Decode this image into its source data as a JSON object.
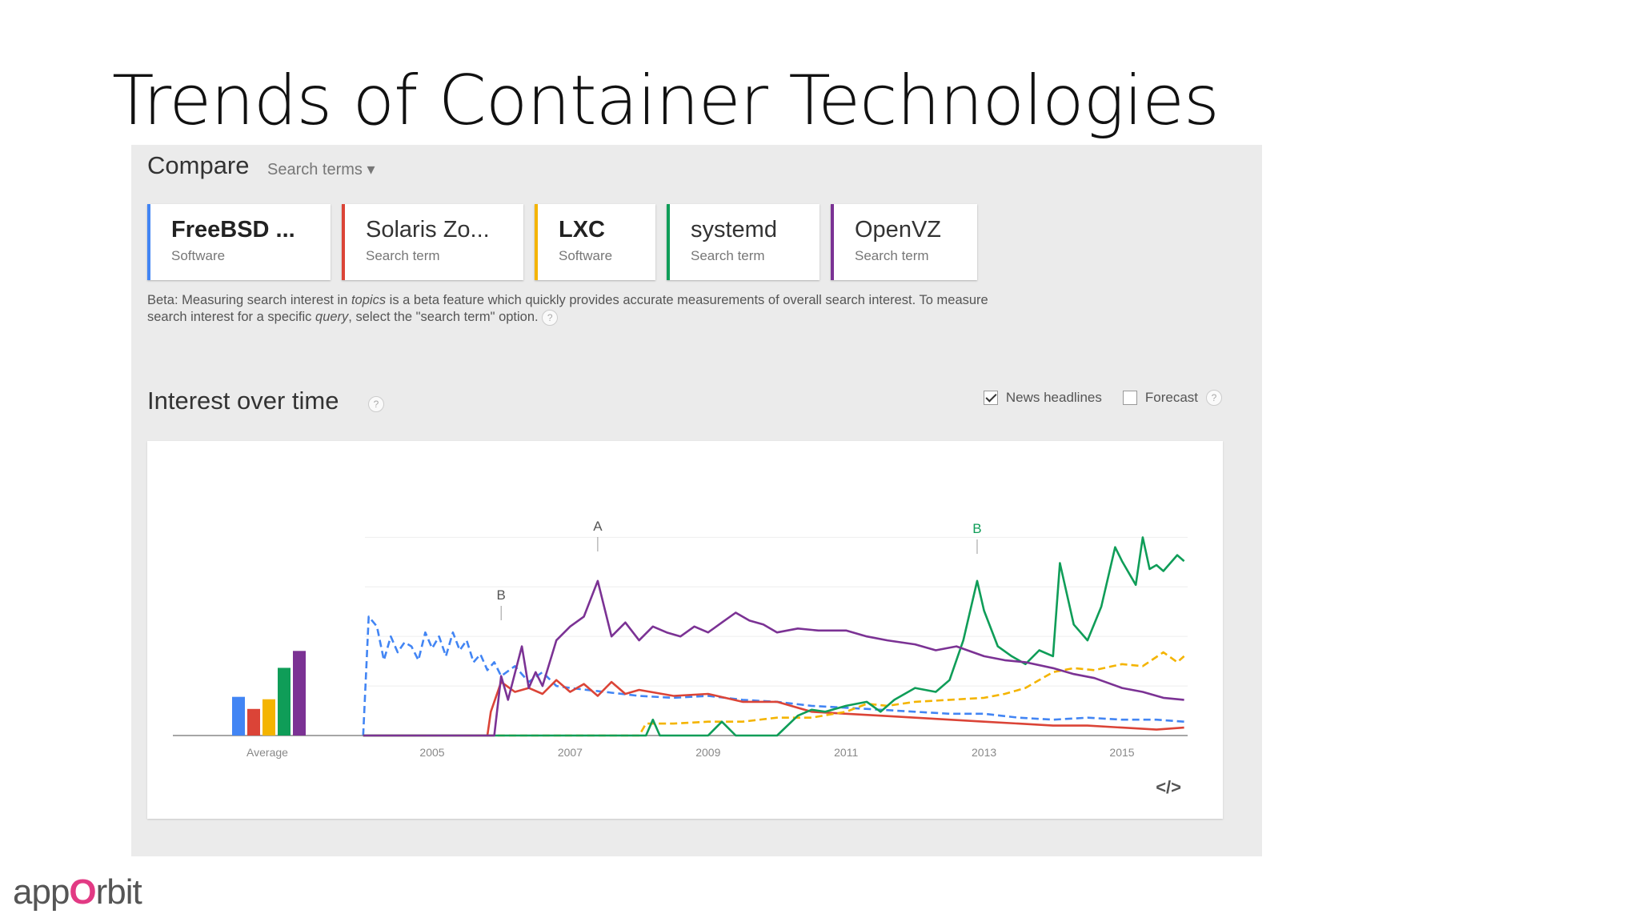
{
  "slide": {
    "title": "Trends of Container Technologies",
    "logo_pre": "app",
    "logo_o": "O",
    "logo_post": "rbit"
  },
  "compare": {
    "label": "Compare",
    "dropdown": "Search terms ▾",
    "terms": [
      {
        "name": "FreeBSD ...",
        "type": "Software",
        "color": "#4285f4",
        "bold": true
      },
      {
        "name": "Solaris Zo...",
        "type": "Search term",
        "color": "#db4437",
        "bold": false
      },
      {
        "name": "LXC",
        "type": "Software",
        "color": "#f4b400",
        "bold": true
      },
      {
        "name": "systemd",
        "type": "Search term",
        "color": "#0f9d58",
        "bold": false
      },
      {
        "name": "OpenVZ",
        "type": "Search term",
        "color": "#7b3294",
        "bold": false
      }
    ],
    "beta_a": "Beta: Measuring search interest in ",
    "beta_topics": "topics",
    "beta_b": " is a beta feature which quickly provides accurate measurements of overall search interest. To measure search interest for a specific ",
    "beta_query": "query",
    "beta_c": ", select the \"search term\" option.",
    "help": "?"
  },
  "interest": {
    "title": "Interest over time",
    "news_label": "News headlines",
    "news_checked": true,
    "forecast_label": "Forecast",
    "forecast_checked": false,
    "embed": "</>"
  },
  "chart_data": {
    "type": "line",
    "title": "Interest over time",
    "xlim": [
      2003.0,
      2016.0
    ],
    "ylim": [
      0,
      100
    ],
    "x_ticks": [
      "2005",
      "2007",
      "2009",
      "2011",
      "2013",
      "2015"
    ],
    "x_tick_values": [
      2005,
      2007,
      2009,
      2011,
      2013,
      2015
    ],
    "average_label": "Average",
    "averages": [
      {
        "name": "FreeBSD jails",
        "value": 16,
        "color": "#4285f4"
      },
      {
        "name": "Solaris Zones",
        "value": 11,
        "color": "#db4437"
      },
      {
        "name": "LXC",
        "value": 15,
        "color": "#f4b400"
      },
      {
        "name": "systemd",
        "value": 28,
        "color": "#0f9d58"
      },
      {
        "name": "OpenVZ",
        "value": 35,
        "color": "#7b3294"
      }
    ],
    "series": [
      {
        "name": "FreeBSD jails",
        "color": "#4285f4",
        "dashed": true,
        "x": [
          2004.0,
          2004.08,
          2004.2,
          2004.3,
          2004.4,
          2004.5,
          2004.6,
          2004.7,
          2004.8,
          2004.9,
          2005.0,
          2005.1,
          2005.2,
          2005.3,
          2005.4,
          2005.5,
          2005.6,
          2005.7,
          2005.8,
          2005.9,
          2006.0,
          2006.2,
          2006.4,
          2006.6,
          2006.8,
          2007.0,
          2007.5,
          2008.0,
          2008.5,
          2009.0,
          2009.5,
          2010.0,
          2010.5,
          2011.0,
          2011.5,
          2012.0,
          2012.5,
          2013.0,
          2013.5,
          2014.0,
          2014.5,
          2015.0,
          2015.5,
          2015.9
        ],
        "y": [
          0,
          60,
          55,
          38,
          50,
          42,
          47,
          45,
          38,
          52,
          44,
          50,
          40,
          52,
          43,
          48,
          37,
          41,
          33,
          37,
          30,
          35,
          27,
          32,
          25,
          24,
          22,
          20,
          19,
          20,
          18,
          17,
          15,
          14,
          13,
          12,
          11,
          11,
          9,
          8,
          9,
          8,
          8,
          7
        ]
      },
      {
        "name": "Solaris Zones",
        "color": "#db4437",
        "dashed": false,
        "x": [
          2004.0,
          2005.8,
          2005.85,
          2006.0,
          2006.2,
          2006.4,
          2006.6,
          2006.8,
          2007.0,
          2007.2,
          2007.4,
          2007.6,
          2007.8,
          2008.0,
          2008.5,
          2009.0,
          2009.5,
          2010.0,
          2010.5,
          2011.0,
          2011.5,
          2012.0,
          2012.5,
          2013.0,
          2013.5,
          2014.0,
          2014.5,
          2015.0,
          2015.5,
          2015.9
        ],
        "y": [
          0,
          0,
          12,
          27,
          22,
          24,
          21,
          28,
          22,
          26,
          20,
          27,
          21,
          23,
          20,
          21,
          17,
          17,
          12,
          11,
          10,
          9,
          8,
          7,
          6,
          5,
          5,
          4,
          3,
          4
        ]
      },
      {
        "name": "LXC",
        "color": "#f4b400",
        "dashed": true,
        "x": [
          2004.0,
          2008.0,
          2008.1,
          2008.5,
          2009.0,
          2009.5,
          2010.0,
          2010.5,
          2011.0,
          2011.3,
          2011.6,
          2012.0,
          2012.5,
          2013.0,
          2013.3,
          2013.6,
          2014.0,
          2014.3,
          2014.6,
          2015.0,
          2015.3,
          2015.6,
          2015.8,
          2015.9
        ],
        "y": [
          0,
          0,
          6,
          6,
          7,
          7,
          9,
          9,
          12,
          16,
          15,
          17,
          18,
          19,
          21,
          24,
          32,
          34,
          33,
          36,
          35,
          42,
          37,
          40
        ]
      },
      {
        "name": "systemd",
        "color": "#0f9d58",
        "dashed": false,
        "x": [
          2004.0,
          2008.1,
          2008.2,
          2008.3,
          2009.0,
          2009.2,
          2009.4,
          2010.0,
          2010.3,
          2010.5,
          2010.7,
          2011.0,
          2011.3,
          2011.5,
          2011.7,
          2012.0,
          2012.3,
          2012.5,
          2012.7,
          2012.9,
          2013.0,
          2013.2,
          2013.4,
          2013.6,
          2013.8,
          2014.0,
          2014.1,
          2014.3,
          2014.5,
          2014.7,
          2014.9,
          2015.0,
          2015.2,
          2015.3,
          2015.4,
          2015.5,
          2015.6,
          2015.8,
          2015.9
        ],
        "y": [
          0,
          0,
          8,
          0,
          0,
          7,
          0,
          0,
          10,
          13,
          12,
          15,
          17,
          12,
          18,
          24,
          22,
          28,
          48,
          78,
          63,
          45,
          40,
          36,
          43,
          40,
          87,
          56,
          48,
          65,
          95,
          88,
          76,
          100,
          84,
          86,
          83,
          91,
          88
        ]
      },
      {
        "name": "OpenVZ",
        "color": "#7b3294",
        "dashed": false,
        "x": [
          2004.0,
          2005.9,
          2006.0,
          2006.1,
          2006.3,
          2006.4,
          2006.5,
          2006.6,
          2006.8,
          2007.0,
          2007.2,
          2007.4,
          2007.6,
          2007.8,
          2008.0,
          2008.2,
          2008.4,
          2008.6,
          2008.8,
          2009.0,
          2009.2,
          2009.4,
          2009.6,
          2009.8,
          2010.0,
          2010.3,
          2010.6,
          2011.0,
          2011.3,
          2011.6,
          2012.0,
          2012.3,
          2012.6,
          2013.0,
          2013.3,
          2013.6,
          2014.0,
          2014.3,
          2014.6,
          2015.0,
          2015.3,
          2015.6,
          2015.9
        ],
        "y": [
          0,
          0,
          30,
          18,
          45,
          24,
          32,
          25,
          48,
          55,
          60,
          78,
          50,
          57,
          48,
          55,
          52,
          50,
          55,
          52,
          57,
          62,
          58,
          56,
          52,
          54,
          53,
          53,
          50,
          48,
          46,
          43,
          45,
          40,
          38,
          37,
          34,
          31,
          29,
          24,
          22,
          19,
          18
        ]
      }
    ],
    "annotations": [
      {
        "label": "A",
        "x": 2007.4,
        "color": "#555"
      },
      {
        "label": "B",
        "x": 2006.0,
        "color": "#555"
      },
      {
        "label": "B",
        "x": 2012.9,
        "color": "#0f9d58"
      }
    ]
  }
}
